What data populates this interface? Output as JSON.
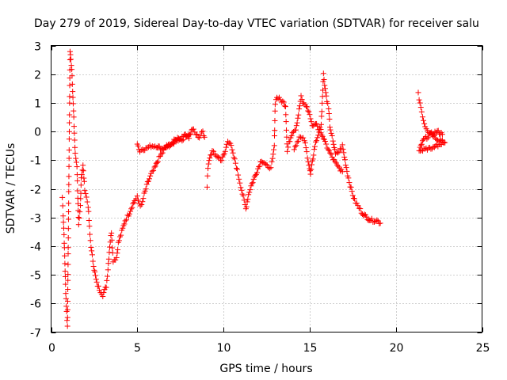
{
  "colors": {
    "series": "#ff0000",
    "grid": "#a0a0a0",
    "axis": "#000000"
  },
  "chart_data": {
    "type": "scatter",
    "title": "Day 279 of 2019, Sidereal Day-to-day VTEC variation (SDTVAR) for receiver salu",
    "xlabel": "GPS time / hours",
    "ylabel": "SDTVAR / TECUs",
    "xlim": [
      0,
      25
    ],
    "ylim": [
      -7,
      3
    ],
    "xticks": [
      0,
      5,
      10,
      15,
      20,
      25
    ],
    "yticks": [
      -7,
      -6,
      -5,
      -4,
      -3,
      -2,
      -1,
      0,
      1,
      2,
      3
    ],
    "grid": true,
    "marker": "plus",
    "series": [
      {
        "name": "SDTVAR",
        "trace": [
          [
            0.65,
            -2.3
          ],
          [
            0.7,
            -2.9
          ],
          [
            0.75,
            -3.6
          ],
          [
            0.8,
            -4.6
          ],
          [
            0.85,
            -5.6
          ],
          [
            0.9,
            -6.3
          ],
          [
            0.95,
            -6.8
          ],
          [
            1.1,
            2.8
          ],
          [
            1.15,
            2.5
          ],
          [
            1.2,
            2.2
          ],
          [
            1.4,
            -0.8
          ],
          [
            1.5,
            -1.2
          ],
          [
            1.55,
            -2.3
          ],
          [
            1.6,
            -3.3
          ],
          [
            1.7,
            -2.6
          ],
          [
            1.75,
            -1.6
          ],
          [
            1.85,
            -1.2
          ],
          [
            1.95,
            -2.0
          ],
          [
            2.05,
            -2.3
          ],
          [
            2.15,
            -2.6
          ],
          [
            2.25,
            -3.6
          ],
          [
            2.35,
            -4.2
          ],
          [
            2.5,
            -4.8
          ],
          [
            2.65,
            -5.3
          ],
          [
            2.8,
            -5.5
          ],
          [
            3.0,
            -5.7
          ],
          [
            3.2,
            -5.4
          ],
          [
            3.3,
            -4.8
          ],
          [
            3.4,
            -4.0
          ],
          [
            3.5,
            -3.5
          ],
          [
            3.6,
            -4.5
          ],
          [
            3.8,
            -4.4
          ],
          [
            3.9,
            -3.9
          ],
          [
            4.1,
            -3.5
          ],
          [
            4.3,
            -3.1
          ],
          [
            4.5,
            -2.9
          ],
          [
            4.7,
            -2.6
          ],
          [
            4.85,
            -2.4
          ],
          [
            5.0,
            -2.3
          ],
          [
            5.1,
            -2.5
          ],
          [
            5.25,
            -2.6
          ],
          [
            5.4,
            -2.2
          ],
          [
            5.6,
            -1.8
          ],
          [
            5.8,
            -1.5
          ],
          [
            6.0,
            -1.3
          ],
          [
            6.2,
            -1.0
          ],
          [
            6.4,
            -0.8
          ],
          [
            6.6,
            -0.6
          ],
          [
            6.8,
            -0.5
          ],
          [
            7.0,
            -0.4
          ],
          [
            7.2,
            -0.3
          ],
          [
            7.4,
            -0.2
          ],
          [
            7.6,
            -0.3
          ],
          [
            7.8,
            -0.1
          ],
          [
            8.0,
            -0.2
          ],
          [
            8.2,
            0.1
          ],
          [
            8.4,
            -0.1
          ],
          [
            8.6,
            -0.2
          ],
          [
            8.8,
            0.0
          ],
          [
            8.9,
            -0.2
          ]
        ],
        "trace2": [
          [
            5.0,
            -0.4
          ],
          [
            5.15,
            -0.7
          ],
          [
            5.3,
            -0.6
          ],
          [
            5.5,
            -0.6
          ],
          [
            5.8,
            -0.5
          ],
          [
            6.1,
            -0.5
          ],
          [
            6.4,
            -0.6
          ],
          [
            6.7,
            -0.5
          ],
          [
            7.0,
            -0.5
          ],
          [
            7.3,
            -0.3
          ],
          [
            7.6,
            -0.2
          ],
          [
            8.0,
            -0.1
          ]
        ],
        "trace3": [
          [
            9.05,
            -1.9
          ],
          [
            9.1,
            -1.3
          ],
          [
            9.2,
            -0.9
          ],
          [
            9.35,
            -0.7
          ],
          [
            9.5,
            -0.8
          ],
          [
            9.7,
            -0.9
          ],
          [
            9.9,
            -1.0
          ],
          [
            10.1,
            -0.7
          ],
          [
            10.25,
            -0.3
          ],
          [
            10.4,
            -0.4
          ],
          [
            10.55,
            -0.8
          ],
          [
            10.7,
            -1.1
          ],
          [
            10.85,
            -1.5
          ],
          [
            11.0,
            -1.9
          ],
          [
            11.15,
            -2.3
          ],
          [
            11.3,
            -2.7
          ],
          [
            11.45,
            -2.2
          ],
          [
            11.6,
            -1.9
          ],
          [
            11.8,
            -1.6
          ],
          [
            12.0,
            -1.3
          ],
          [
            12.2,
            -1.0
          ],
          [
            12.4,
            -1.1
          ],
          [
            12.6,
            -1.3
          ],
          [
            12.75,
            -1.2
          ],
          [
            12.85,
            -1.0
          ],
          [
            12.95,
            -0.5
          ],
          [
            13.0,
            1.0
          ],
          [
            13.1,
            1.2
          ],
          [
            13.3,
            1.1
          ],
          [
            13.5,
            1.0
          ],
          [
            13.6,
            0.9
          ],
          [
            13.7,
            -0.7
          ],
          [
            13.8,
            -0.4
          ],
          [
            14.0,
            0.0
          ],
          [
            14.2,
            0.1
          ],
          [
            14.35,
            0.6
          ],
          [
            14.5,
            1.2
          ],
          [
            14.6,
            1.0
          ],
          [
            14.8,
            0.9
          ],
          [
            15.0,
            0.6
          ],
          [
            15.1,
            0.3
          ],
          [
            15.2,
            0.2
          ],
          [
            15.35,
            0.3
          ],
          [
            15.5,
            0.1
          ],
          [
            15.65,
            0.0
          ],
          [
            15.8,
            2.0
          ],
          [
            15.9,
            1.5
          ],
          [
            16.0,
            1.1
          ],
          [
            16.1,
            0.8
          ],
          [
            16.2,
            0.0
          ],
          [
            16.35,
            -0.3
          ],
          [
            16.5,
            -0.8
          ],
          [
            16.7,
            -0.7
          ],
          [
            16.9,
            -0.5
          ],
          [
            17.05,
            -1.0
          ],
          [
            17.2,
            -1.5
          ],
          [
            17.4,
            -2.0
          ],
          [
            17.6,
            -2.4
          ],
          [
            17.8,
            -2.6
          ],
          [
            18.0,
            -2.8
          ],
          [
            18.3,
            -3.0
          ],
          [
            18.6,
            -3.1
          ],
          [
            18.9,
            -3.1
          ],
          [
            19.1,
            -3.2
          ]
        ],
        "trace4": [
          [
            14.1,
            -0.6
          ],
          [
            14.4,
            -0.2
          ],
          [
            14.7,
            -0.3
          ],
          [
            15.0,
            -1.3
          ],
          [
            15.05,
            -1.5
          ],
          [
            15.3,
            -0.5
          ],
          [
            15.6,
            0.1
          ],
          [
            15.9,
            -0.4
          ],
          [
            16.3,
            -0.9
          ],
          [
            16.6,
            -1.2
          ],
          [
            16.9,
            -1.4
          ]
        ],
        "trace5": [
          [
            21.3,
            1.3
          ],
          [
            21.4,
            1.0
          ],
          [
            21.5,
            0.7
          ],
          [
            21.6,
            0.4
          ],
          [
            21.7,
            0.2
          ],
          [
            21.9,
            0.0
          ],
          [
            22.1,
            -0.1
          ],
          [
            22.3,
            -0.2
          ],
          [
            22.5,
            -0.3
          ],
          [
            22.7,
            -0.3
          ],
          [
            22.85,
            -0.4
          ],
          [
            21.35,
            -0.7
          ],
          [
            21.45,
            -0.5
          ],
          [
            21.6,
            -0.3
          ],
          [
            21.8,
            -0.2
          ],
          [
            22.0,
            -0.1
          ],
          [
            22.4,
            0.0
          ],
          [
            22.7,
            -0.1
          ]
        ]
      }
    ]
  }
}
